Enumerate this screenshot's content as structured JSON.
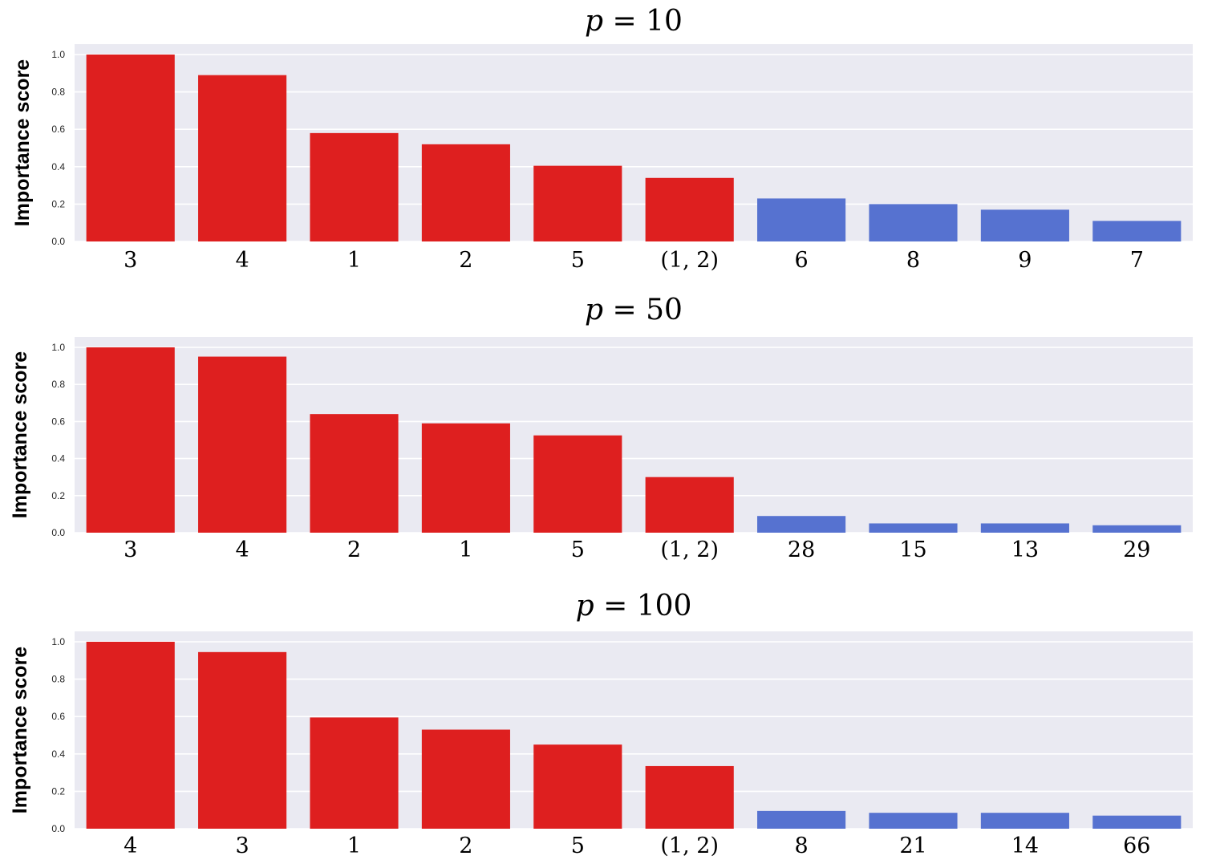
{
  "figure": {
    "colors": {
      "highlight": "#de1f1f",
      "other": "#5672d0",
      "panel_background": "#eaeaf2",
      "grid": "#ffffff"
    }
  },
  "chart_data": [
    {
      "type": "bar",
      "title_var": "p",
      "title_eq": "=",
      "title_num": "10",
      "ylabel": "Importance score",
      "ylim": [
        0,
        1.0
      ],
      "yticks": [
        "0.0",
        "0.2",
        "0.4",
        "0.6",
        "0.8",
        "1.0"
      ],
      "grid": true,
      "categories": [
        "3",
        "4",
        "1",
        "2",
        "5",
        "(1, 2)",
        "6",
        "8",
        "9",
        "7"
      ],
      "values": [
        1.0,
        0.89,
        0.58,
        0.52,
        0.405,
        0.34,
        0.23,
        0.2,
        0.17,
        0.11
      ],
      "highlighted": [
        true,
        true,
        true,
        true,
        true,
        true,
        false,
        false,
        false,
        false
      ]
    },
    {
      "type": "bar",
      "title_var": "p",
      "title_eq": "=",
      "title_num": "50",
      "ylabel": "Importance score",
      "ylim": [
        0,
        1.0
      ],
      "yticks": [
        "0.0",
        "0.2",
        "0.4",
        "0.6",
        "0.8",
        "1.0"
      ],
      "grid": true,
      "categories": [
        "3",
        "4",
        "2",
        "1",
        "5",
        "(1, 2)",
        "28",
        "15",
        "13",
        "29"
      ],
      "values": [
        1.0,
        0.95,
        0.64,
        0.59,
        0.525,
        0.3,
        0.09,
        0.05,
        0.05,
        0.04
      ],
      "highlighted": [
        true,
        true,
        true,
        true,
        true,
        true,
        false,
        false,
        false,
        false
      ]
    },
    {
      "type": "bar",
      "title_var": "p",
      "title_eq": "=",
      "title_num": "100",
      "ylabel": "Importance score",
      "ylim": [
        0,
        1.0
      ],
      "yticks": [
        "0.0",
        "0.2",
        "0.4",
        "0.6",
        "0.8",
        "1.0"
      ],
      "grid": true,
      "categories": [
        "4",
        "3",
        "1",
        "2",
        "5",
        "(1, 2)",
        "8",
        "21",
        "14",
        "66"
      ],
      "values": [
        1.0,
        0.945,
        0.595,
        0.53,
        0.45,
        0.335,
        0.095,
        0.085,
        0.085,
        0.07
      ],
      "highlighted": [
        true,
        true,
        true,
        true,
        true,
        true,
        false,
        false,
        false,
        false
      ]
    }
  ]
}
